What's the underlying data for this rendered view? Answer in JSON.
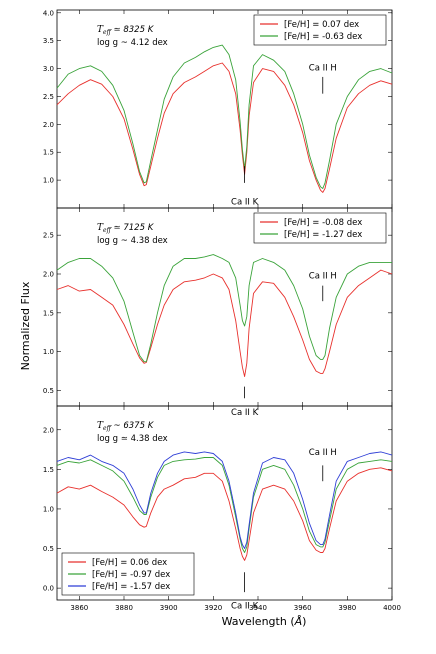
{
  "figure": {
    "ylabel": "Normalized Flux",
    "xlabel_main": "Wavelength (",
    "xlabel_unit": "Å",
    "xlabel_close": ")"
  },
  "chart_data": [
    {
      "type": "line",
      "xlim": [
        3850,
        4000
      ],
      "ylim": [
        0.5,
        4.05
      ],
      "yticks": [
        "1.0",
        "1.5",
        "2.0",
        "2.5",
        "3.0",
        "3.5",
        "4.0"
      ],
      "params": {
        "teff_label": "T",
        "teff_sub": "eff",
        "teff_rest": " ≃ 8325 K",
        "logg_label": "log g  ~  4.12 dex"
      },
      "legend_position": "top-right",
      "line_labels": [
        {
          "text": "Ca II K",
          "x": 3934,
          "tick_from": 1.25,
          "tick_to": 0.95,
          "text_y": 0.62
        },
        {
          "text": "Ca II H",
          "x": 3969,
          "tick_from": 2.55,
          "tick_to": 2.85,
          "text_y": 3.02
        }
      ],
      "series": [
        {
          "name": "[Fe/H] = 0.07 dex",
          "color": "#e8312d",
          "x": [
            3850,
            3855,
            3860,
            3865,
            3870,
            3875,
            3880,
            3884,
            3887,
            3889,
            3890,
            3892,
            3895,
            3898,
            3902,
            3907,
            3912,
            3916,
            3920,
            3924,
            3927,
            3930,
            3932,
            3933,
            3934,
            3935,
            3936,
            3938,
            3942,
            3947,
            3952,
            3956,
            3960,
            3963,
            3966,
            3968,
            3969,
            3970,
            3972,
            3975,
            3980,
            3985,
            3990,
            3995,
            4000
          ],
          "y": [
            2.35,
            2.55,
            2.7,
            2.8,
            2.72,
            2.5,
            2.1,
            1.55,
            1.1,
            0.9,
            0.92,
            1.25,
            1.75,
            2.2,
            2.55,
            2.75,
            2.85,
            2.95,
            3.05,
            3.1,
            2.95,
            2.55,
            1.9,
            1.45,
            1.1,
            1.5,
            2.15,
            2.75,
            3.0,
            2.95,
            2.7,
            2.35,
            1.85,
            1.35,
            1.0,
            0.82,
            0.78,
            0.85,
            1.2,
            1.75,
            2.3,
            2.55,
            2.7,
            2.78,
            2.72
          ]
        },
        {
          "name": "[Fe/H] = -0.63 dex",
          "color": "#3aa33a",
          "x": [
            3850,
            3855,
            3860,
            3865,
            3870,
            3875,
            3880,
            3884,
            3887,
            3889,
            3890,
            3892,
            3895,
            3898,
            3902,
            3907,
            3912,
            3916,
            3920,
            3924,
            3927,
            3930,
            3932,
            3933,
            3934,
            3935,
            3936,
            3938,
            3942,
            3947,
            3952,
            3956,
            3960,
            3963,
            3966,
            3968,
            3969,
            3970,
            3972,
            3975,
            3980,
            3985,
            3990,
            3995,
            4000
          ],
          "y": [
            2.65,
            2.9,
            3.0,
            3.05,
            2.95,
            2.7,
            2.25,
            1.65,
            1.15,
            0.95,
            0.97,
            1.35,
            1.9,
            2.45,
            2.85,
            3.1,
            3.2,
            3.3,
            3.38,
            3.42,
            3.25,
            2.8,
            2.05,
            1.55,
            1.2,
            1.6,
            2.35,
            3.05,
            3.25,
            3.15,
            2.95,
            2.55,
            2.0,
            1.45,
            1.05,
            0.88,
            0.85,
            0.95,
            1.35,
            2.0,
            2.5,
            2.8,
            2.95,
            3.0,
            2.92
          ]
        }
      ]
    },
    {
      "type": "line",
      "xlim": [
        3850,
        4000
      ],
      "ylim": [
        0.3,
        2.85
      ],
      "yticks": [
        "0.5",
        "1.0",
        "1.5",
        "2.0",
        "2.5"
      ],
      "params": {
        "teff_label": "T",
        "teff_sub": "eff",
        "teff_rest": " ≃ 7125 K",
        "logg_label": "log g  ~  4.38 dex"
      },
      "legend_position": "top-right",
      "line_labels": [
        {
          "text": "Ca II K",
          "x": 3934,
          "tick_from": 0.55,
          "tick_to": 0.4,
          "text_y": 0.22
        },
        {
          "text": "Ca II H",
          "x": 3969,
          "tick_from": 1.65,
          "tick_to": 1.85,
          "text_y": 1.98
        }
      ],
      "series": [
        {
          "name": "[Fe/H] = -0.08 dex",
          "color": "#e8312d",
          "x": [
            3850,
            3855,
            3860,
            3865,
            3870,
            3875,
            3880,
            3884,
            3887,
            3889,
            3890,
            3892,
            3895,
            3898,
            3902,
            3907,
            3912,
            3916,
            3920,
            3924,
            3927,
            3930,
            3932,
            3933,
            3934,
            3935,
            3936,
            3938,
            3942,
            3947,
            3952,
            3956,
            3960,
            3963,
            3966,
            3968,
            3969,
            3970,
            3972,
            3975,
            3980,
            3985,
            3990,
            3995,
            4000
          ],
          "y": [
            1.8,
            1.85,
            1.78,
            1.8,
            1.7,
            1.6,
            1.35,
            1.1,
            0.92,
            0.85,
            0.86,
            1.05,
            1.35,
            1.6,
            1.8,
            1.9,
            1.92,
            1.95,
            2.0,
            1.95,
            1.8,
            1.4,
            1.0,
            0.8,
            0.68,
            0.85,
            1.3,
            1.75,
            1.9,
            1.88,
            1.7,
            1.45,
            1.15,
            0.9,
            0.75,
            0.72,
            0.72,
            0.78,
            1.0,
            1.35,
            1.7,
            1.85,
            1.95,
            2.05,
            2.0
          ]
        },
        {
          "name": "[Fe/H] = -1.27 dex",
          "color": "#3aa33a",
          "x": [
            3850,
            3855,
            3860,
            3865,
            3870,
            3875,
            3880,
            3884,
            3887,
            3889,
            3890,
            3892,
            3895,
            3898,
            3902,
            3907,
            3912,
            3916,
            3920,
            3924,
            3927,
            3930,
            3932,
            3933,
            3934,
            3935,
            3936,
            3938,
            3942,
            3947,
            3952,
            3956,
            3960,
            3963,
            3966,
            3968,
            3969,
            3970,
            3972,
            3975,
            3980,
            3985,
            3990,
            3995,
            4000
          ],
          "y": [
            2.05,
            2.15,
            2.2,
            2.2,
            2.1,
            1.95,
            1.65,
            1.25,
            0.95,
            0.87,
            0.87,
            1.1,
            1.5,
            1.85,
            2.1,
            2.2,
            2.2,
            2.22,
            2.25,
            2.2,
            2.15,
            1.95,
            1.6,
            1.4,
            1.33,
            1.45,
            1.85,
            2.15,
            2.2,
            2.15,
            2.05,
            1.85,
            1.55,
            1.2,
            0.95,
            0.9,
            0.9,
            0.95,
            1.3,
            1.7,
            2.0,
            2.1,
            2.15,
            2.15,
            2.15
          ]
        }
      ]
    },
    {
      "type": "line",
      "xlim": [
        3850,
        4000
      ],
      "ylim": [
        -0.15,
        2.3
      ],
      "yticks": [
        "0.0",
        "0.5",
        "1.0",
        "1.5",
        "2.0"
      ],
      "xticks": [
        "3860",
        "3880",
        "3900",
        "3920",
        "3940",
        "3960",
        "3980",
        "4000"
      ],
      "params": {
        "teff_label": "T",
        "teff_sub": "eff",
        "teff_rest": " ~  6375 K",
        "logg_label": "log g  ≃  4.38 dex"
      },
      "legend_position": "bottom-left",
      "line_labels": [
        {
          "text": "Ca II K",
          "x": 3934,
          "tick_from": 0.2,
          "tick_to": -0.05,
          "text_y": -0.22
        },
        {
          "text": "Ca II H",
          "x": 3969,
          "tick_from": 1.35,
          "tick_to": 1.55,
          "text_y": 1.72
        }
      ],
      "series": [
        {
          "name": "[Fe/H] = 0.06 dex",
          "color": "#e8312d",
          "x": [
            3850,
            3855,
            3860,
            3865,
            3870,
            3875,
            3880,
            3884,
            3887,
            3889,
            3890,
            3892,
            3895,
            3898,
            3902,
            3907,
            3912,
            3916,
            3920,
            3924,
            3927,
            3930,
            3932,
            3933,
            3934,
            3935,
            3936,
            3938,
            3942,
            3947,
            3952,
            3956,
            3960,
            3963,
            3966,
            3968,
            3969,
            3970,
            3972,
            3975,
            3980,
            3985,
            3990,
            3995,
            4000
          ],
          "y": [
            1.2,
            1.28,
            1.25,
            1.3,
            1.22,
            1.15,
            1.05,
            0.9,
            0.8,
            0.77,
            0.78,
            0.95,
            1.15,
            1.25,
            1.3,
            1.38,
            1.4,
            1.45,
            1.45,
            1.35,
            1.1,
            0.75,
            0.5,
            0.4,
            0.35,
            0.42,
            0.6,
            0.95,
            1.25,
            1.3,
            1.25,
            1.1,
            0.85,
            0.6,
            0.48,
            0.45,
            0.45,
            0.5,
            0.75,
            1.1,
            1.35,
            1.45,
            1.5,
            1.52,
            1.48
          ]
        },
        {
          "name": "[Fe/H] = -0.97 dex",
          "color": "#3aa33a",
          "x": [
            3850,
            3855,
            3860,
            3865,
            3870,
            3875,
            3880,
            3884,
            3887,
            3889,
            3890,
            3892,
            3895,
            3898,
            3902,
            3907,
            3912,
            3916,
            3920,
            3924,
            3927,
            3930,
            3932,
            3933,
            3934,
            3935,
            3936,
            3938,
            3942,
            3947,
            3952,
            3956,
            3960,
            3963,
            3966,
            3968,
            3969,
            3970,
            3972,
            3975,
            3980,
            3985,
            3990,
            3995,
            4000
          ],
          "y": [
            1.55,
            1.6,
            1.58,
            1.62,
            1.55,
            1.48,
            1.35,
            1.15,
            0.98,
            0.93,
            0.93,
            1.15,
            1.4,
            1.55,
            1.6,
            1.62,
            1.63,
            1.65,
            1.65,
            1.55,
            1.3,
            0.9,
            0.62,
            0.5,
            0.45,
            0.52,
            0.75,
            1.15,
            1.5,
            1.55,
            1.5,
            1.3,
            1.0,
            0.72,
            0.55,
            0.52,
            0.52,
            0.58,
            0.85,
            1.25,
            1.5,
            1.58,
            1.6,
            1.62,
            1.6
          ]
        },
        {
          "name": "[Fe/H] = -1.57 dex",
          "color": "#2f3fd6",
          "x": [
            3850,
            3855,
            3860,
            3865,
            3870,
            3875,
            3880,
            3884,
            3887,
            3889,
            3890,
            3892,
            3895,
            3898,
            3902,
            3907,
            3912,
            3916,
            3920,
            3924,
            3927,
            3930,
            3932,
            3933,
            3934,
            3935,
            3936,
            3938,
            3942,
            3947,
            3952,
            3956,
            3960,
            3963,
            3966,
            3968,
            3969,
            3970,
            3972,
            3975,
            3980,
            3985,
            3990,
            3995,
            4000
          ],
          "y": [
            1.6,
            1.65,
            1.62,
            1.68,
            1.6,
            1.55,
            1.45,
            1.25,
            1.05,
            0.95,
            0.95,
            1.2,
            1.45,
            1.6,
            1.68,
            1.72,
            1.7,
            1.72,
            1.7,
            1.6,
            1.35,
            0.95,
            0.65,
            0.55,
            0.5,
            0.58,
            0.8,
            1.2,
            1.58,
            1.65,
            1.62,
            1.45,
            1.12,
            0.82,
            0.6,
            0.55,
            0.55,
            0.62,
            0.92,
            1.35,
            1.6,
            1.65,
            1.7,
            1.72,
            1.68
          ]
        }
      ]
    }
  ]
}
